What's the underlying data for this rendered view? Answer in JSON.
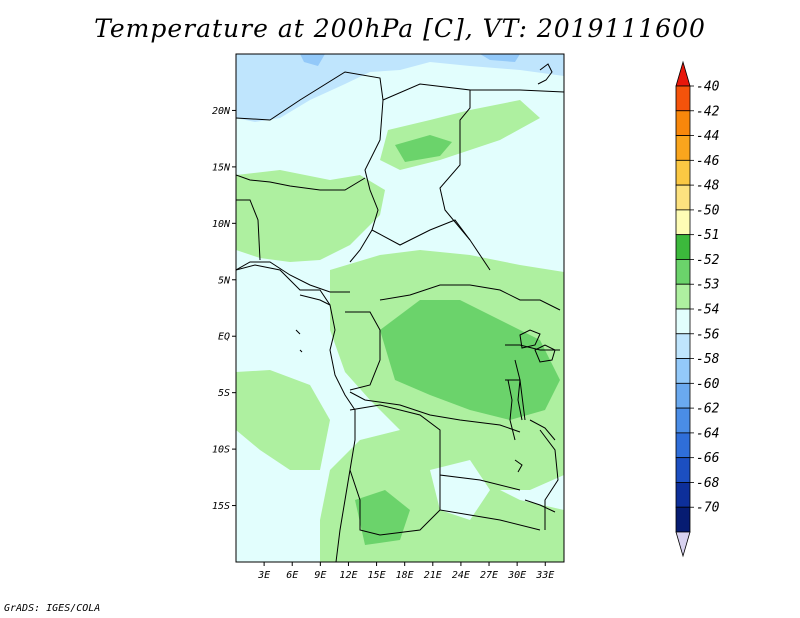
{
  "title": "Temperature at 200hPa [C], VT: 2019111600",
  "credit": "GrADS: IGES/COLA",
  "map": {
    "lat_ticks": [
      {
        "label": "20N",
        "value": 20
      },
      {
        "label": "15N",
        "value": 15
      },
      {
        "label": "10N",
        "value": 10
      },
      {
        "label": "5N",
        "value": 5
      },
      {
        "label": "EQ",
        "value": 0
      },
      {
        "label": "5S",
        "value": -5
      },
      {
        "label": "10S",
        "value": -10
      },
      {
        "label": "15S",
        "value": -15
      }
    ],
    "lon_ticks": [
      {
        "label": "3E",
        "value": 3
      },
      {
        "label": "6E",
        "value": 6
      },
      {
        "label": "9E",
        "value": 9
      },
      {
        "label": "12E",
        "value": 12
      },
      {
        "label": "15E",
        "value": 15
      },
      {
        "label": "18E",
        "value": 18
      },
      {
        "label": "21E",
        "value": 21
      },
      {
        "label": "24E",
        "value": 24
      },
      {
        "label": "27E",
        "value": 27
      },
      {
        "label": "30E",
        "value": 30
      },
      {
        "label": "33E",
        "value": 33
      }
    ],
    "lon_range": [
      0,
      35
    ],
    "lat_range": [
      -20,
      25
    ]
  },
  "colorbar": {
    "labels": [
      "-40",
      "-42",
      "-44",
      "-46",
      "-48",
      "-50",
      "-51",
      "-52",
      "-53",
      "-54",
      "-56",
      "-58",
      "-60",
      "-62",
      "-64",
      "-66",
      "-68",
      "-70"
    ],
    "colors": [
      "#e8170b",
      "#f5530b",
      "#f8870b",
      "#f9a51d",
      "#fbc843",
      "#fde27f",
      "#fefcb5",
      "#3cb93c",
      "#6bd36b",
      "#aef0a0",
      "#e2fefd",
      "#bfe5fd",
      "#93c9f9",
      "#6aa9ef",
      "#4a8de6",
      "#2f6ed9",
      "#1c4fc1",
      "#0d2f9a",
      "#061c72",
      "#d8d2f0"
    ]
  },
  "field_colors": {
    "c54": "#e2fefd",
    "c53": "#aef0a0",
    "c52": "#6bd36b",
    "c56": "#bfe5fd",
    "c58": "#93c9f9"
  }
}
